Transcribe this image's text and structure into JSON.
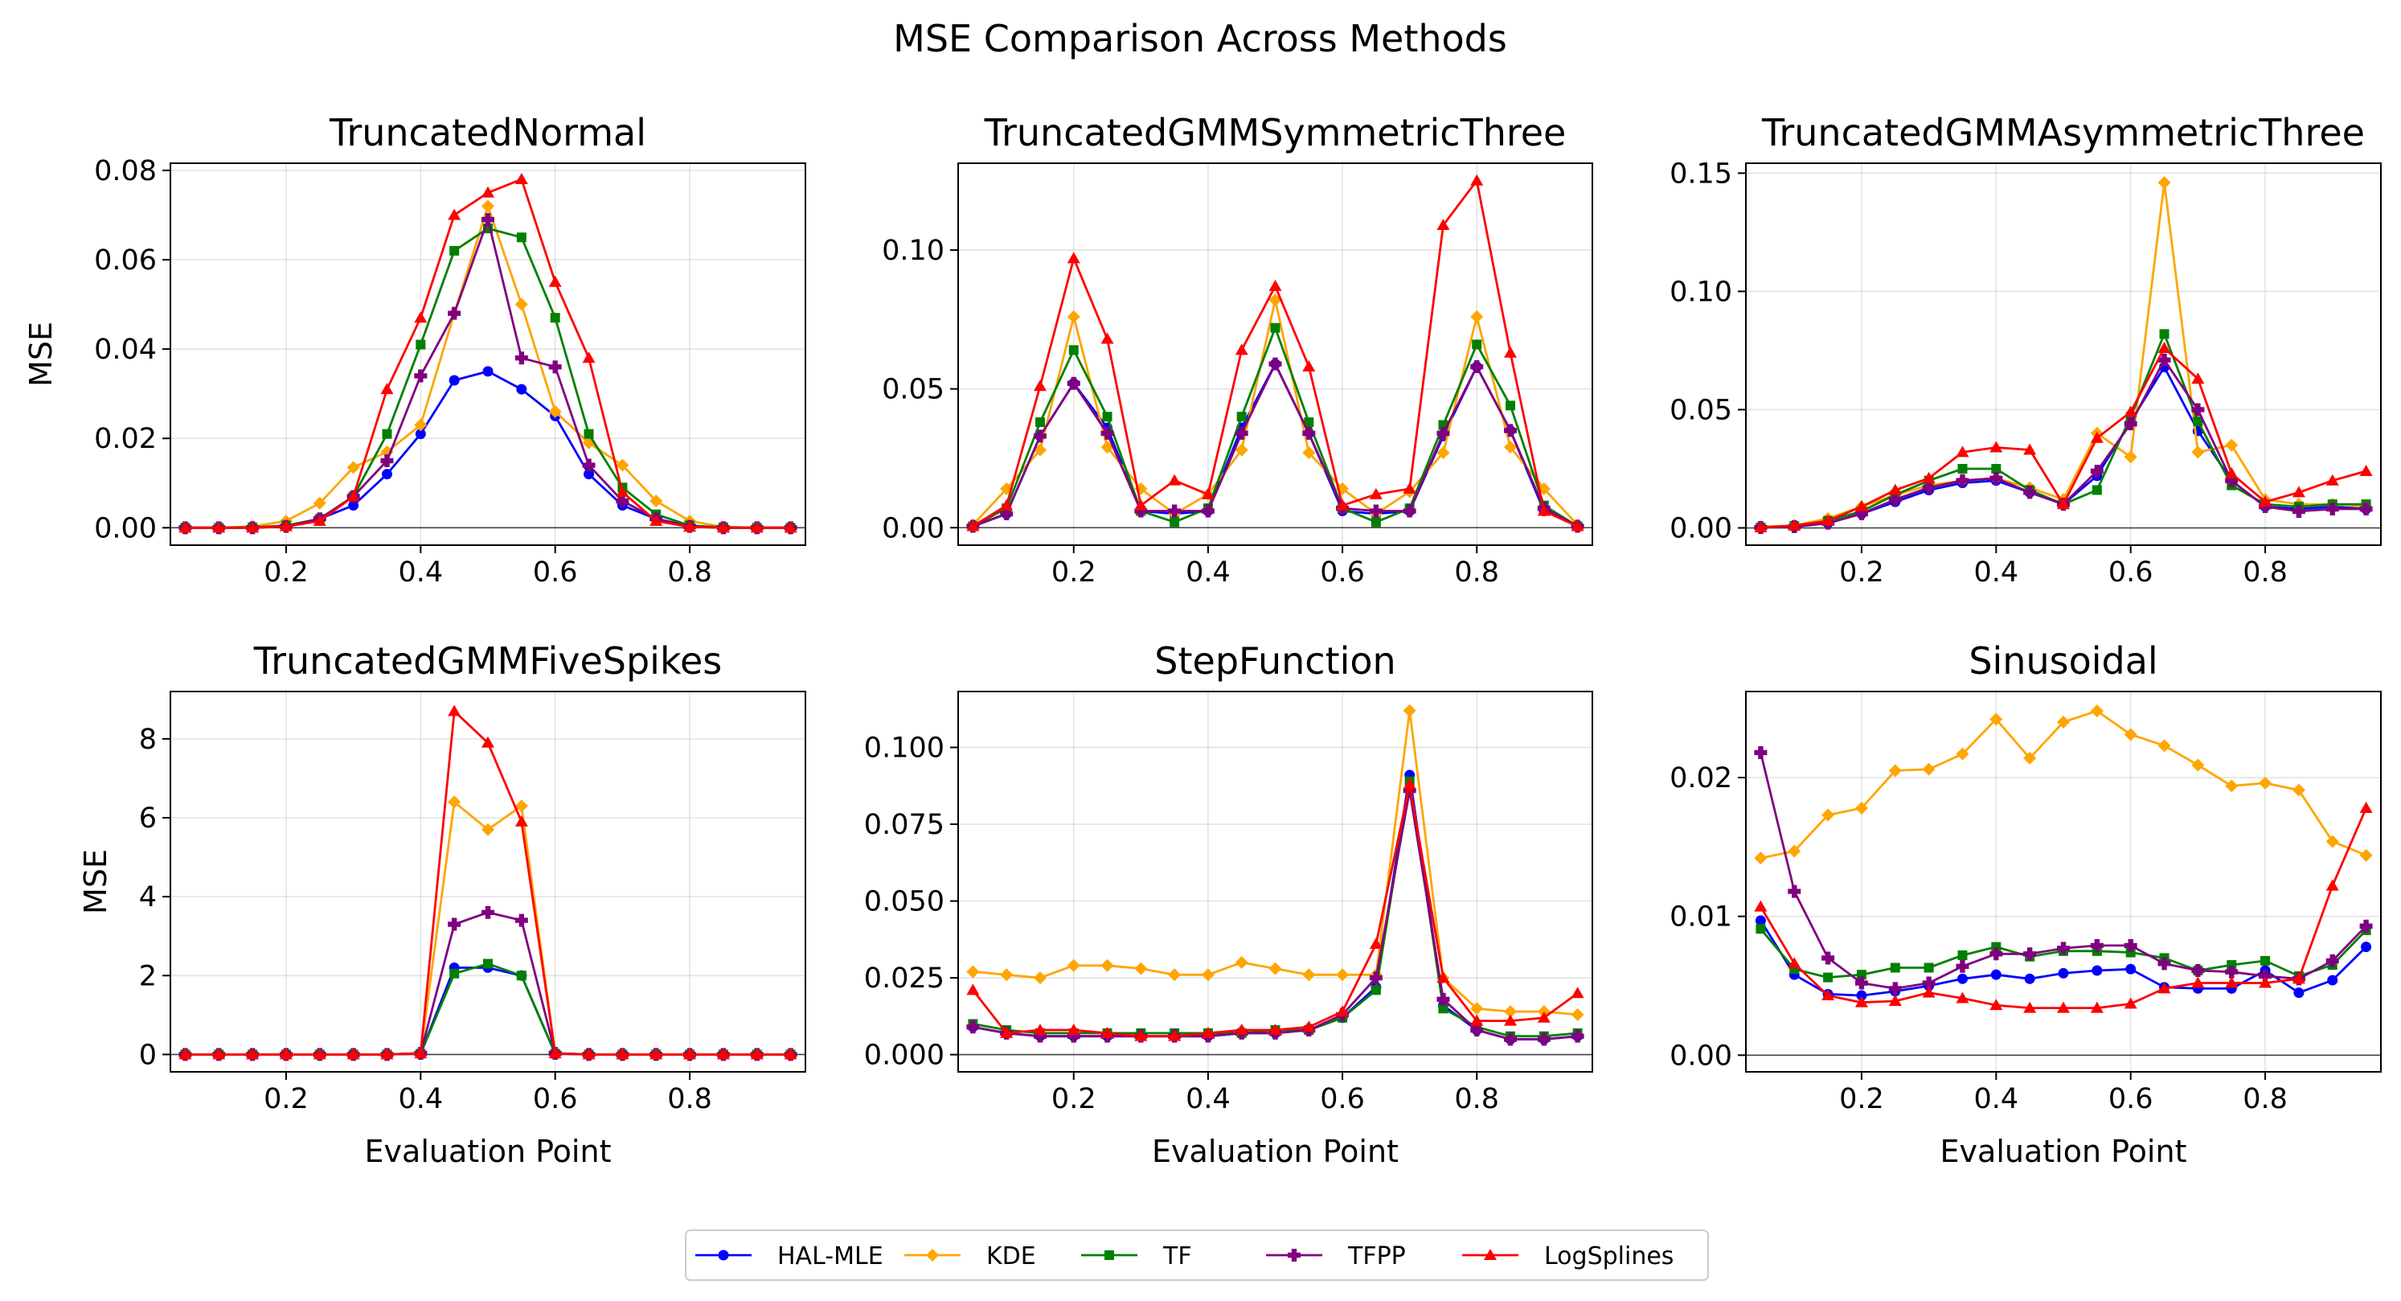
{
  "suptitle": "MSE Comparison Across Methods",
  "legend": [
    {
      "name": "HAL-MLE",
      "color": "#0000ff",
      "marker": "circle"
    },
    {
      "name": "KDE",
      "color": "#ffa500",
      "marker": "diamond"
    },
    {
      "name": "TF",
      "color": "#008000",
      "marker": "square"
    },
    {
      "name": "TFPP",
      "color": "#800080",
      "marker": "plus"
    },
    {
      "name": "LogSplines",
      "color": "#ff0000",
      "marker": "triangle"
    }
  ],
  "chart_data": [
    {
      "type": "line",
      "title": "TruncatedNormal",
      "xlabel": "",
      "ylabel": "MSE",
      "xlim": [
        0.028,
        0.972
      ],
      "ylim": [
        -0.0039,
        0.0816
      ],
      "xticks": [
        0.2,
        0.4,
        0.6,
        0.8
      ],
      "xtick_labels": [
        "0.2",
        "0.4",
        "0.6",
        "0.8"
      ],
      "yticks": [
        0,
        0.02,
        0.04,
        0.06,
        0.08
      ],
      "ytick_labels": [
        "0.00",
        "0.02",
        "0.04",
        "0.06",
        "0.08"
      ],
      "grid": true,
      "x": [
        0.05,
        0.1,
        0.15,
        0.2,
        0.25,
        0.3,
        0.35,
        0.4,
        0.45,
        0.5,
        0.55,
        0.6,
        0.65,
        0.7,
        0.75,
        0.8,
        0.85,
        0.9,
        0.95
      ],
      "series": [
        {
          "name": "HAL-MLE",
          "values": [
            0,
            0,
            0,
            0.0004,
            0.002,
            0.005,
            0.012,
            0.021,
            0.033,
            0.035,
            0.031,
            0.025,
            0.012,
            0.005,
            0.002,
            0.0004,
            0,
            0,
            0
          ]
        },
        {
          "name": "KDE",
          "values": [
            0,
            0,
            0.0003,
            0.0015,
            0.0055,
            0.0135,
            0.017,
            0.023,
            0.048,
            0.072,
            0.05,
            0.026,
            0.019,
            0.014,
            0.006,
            0.0015,
            0.0002,
            0,
            0
          ]
        },
        {
          "name": "TF",
          "values": [
            0,
            0,
            0.0001,
            0.0005,
            0.002,
            0.007,
            0.021,
            0.041,
            0.062,
            0.067,
            0.065,
            0.047,
            0.021,
            0.009,
            0.003,
            0.0005,
            0.0001,
            0,
            0
          ]
        },
        {
          "name": "TFPP",
          "values": [
            0,
            0,
            0,
            0.0003,
            0.002,
            0.007,
            0.015,
            0.034,
            0.048,
            0.069,
            0.038,
            0.036,
            0.014,
            0.006,
            0.002,
            0.0003,
            0,
            0,
            0
          ]
        },
        {
          "name": "LogSplines",
          "values": [
            0,
            0,
            0,
            0.0003,
            0.0015,
            0.007,
            0.031,
            0.047,
            0.07,
            0.075,
            0.078,
            0.055,
            0.038,
            0.008,
            0.0015,
            0.0002,
            0,
            0,
            0
          ]
        }
      ]
    },
    {
      "type": "line",
      "title": "TruncatedGMMSymmetricThree",
      "xlabel": "",
      "ylabel": "",
      "xlim": [
        0.028,
        0.972
      ],
      "ylim": [
        -0.0063,
        0.1313
      ],
      "xticks": [
        0.2,
        0.4,
        0.6,
        0.8
      ],
      "xtick_labels": [
        "0.2",
        "0.4",
        "0.6",
        "0.8"
      ],
      "yticks": [
        0,
        0.05,
        0.1
      ],
      "ytick_labels": [
        "0.00",
        "0.05",
        "0.10"
      ],
      "grid": true,
      "x": [
        0.05,
        0.1,
        0.15,
        0.2,
        0.25,
        0.3,
        0.35,
        0.4,
        0.45,
        0.5,
        0.55,
        0.6,
        0.65,
        0.7,
        0.75,
        0.8,
        0.85,
        0.9,
        0.95
      ],
      "series": [
        {
          "name": "HAL-MLE",
          "values": [
            0.0005,
            0.005,
            0.033,
            0.052,
            0.036,
            0.006,
            0.005,
            0.006,
            0.036,
            0.059,
            0.034,
            0.006,
            0.005,
            0.006,
            0.033,
            0.058,
            0.035,
            0.006,
            0.0005
          ]
        },
        {
          "name": "KDE",
          "values": [
            0.001,
            0.014,
            0.028,
            0.076,
            0.029,
            0.014,
            0.005,
            0.012,
            0.028,
            0.082,
            0.027,
            0.014,
            0.005,
            0.013,
            0.027,
            0.076,
            0.029,
            0.014,
            0.001
          ]
        },
        {
          "name": "TF",
          "values": [
            0.0005,
            0.007,
            0.038,
            0.064,
            0.04,
            0.006,
            0.002,
            0.007,
            0.04,
            0.072,
            0.038,
            0.007,
            0.002,
            0.007,
            0.037,
            0.066,
            0.044,
            0.008,
            0.0005
          ]
        },
        {
          "name": "TFPP",
          "values": [
            0.0005,
            0.005,
            0.033,
            0.052,
            0.034,
            0.006,
            0.006,
            0.006,
            0.034,
            0.059,
            0.034,
            0.007,
            0.006,
            0.006,
            0.034,
            0.058,
            0.035,
            0.007,
            0.0005
          ]
        },
        {
          "name": "LogSplines",
          "values": [
            0.0005,
            0.008,
            0.051,
            0.097,
            0.068,
            0.008,
            0.017,
            0.012,
            0.064,
            0.087,
            0.058,
            0.008,
            0.012,
            0.014,
            0.109,
            0.125,
            0.063,
            0.006,
            0.0005
          ]
        }
      ]
    },
    {
      "type": "line",
      "title": "TruncatedGMMAsymmetricThree",
      "xlabel": "",
      "ylabel": "",
      "xlim": [
        0.028,
        0.972
      ],
      "ylim": [
        -0.0073,
        0.1542
      ],
      "xticks": [
        0.2,
        0.4,
        0.6,
        0.8
      ],
      "xtick_labels": [
        "0.2",
        "0.4",
        "0.6",
        "0.8"
      ],
      "yticks": [
        0,
        0.05,
        0.1,
        0.15
      ],
      "ytick_labels": [
        "0.00",
        "0.05",
        "0.10",
        "0.15"
      ],
      "grid": true,
      "x": [
        0.05,
        0.1,
        0.15,
        0.2,
        0.25,
        0.3,
        0.35,
        0.4,
        0.45,
        0.5,
        0.55,
        0.6,
        0.65,
        0.7,
        0.75,
        0.8,
        0.85,
        0.9,
        0.95
      ],
      "series": [
        {
          "name": "HAL-MLE",
          "values": [
            0.0002,
            0.0005,
            0.002,
            0.006,
            0.011,
            0.016,
            0.019,
            0.02,
            0.015,
            0.01,
            0.022,
            0.045,
            0.068,
            0.041,
            0.02,
            0.009,
            0.008,
            0.009,
            0.008
          ]
        },
        {
          "name": "KDE",
          "values": [
            0.0005,
            0.001,
            0.004,
            0.009,
            0.014,
            0.018,
            0.02,
            0.021,
            0.017,
            0.012,
            0.04,
            0.03,
            0.146,
            0.032,
            0.035,
            0.012,
            0.01,
            0.01,
            0.009
          ]
        },
        {
          "name": "TF",
          "values": [
            0.0002,
            0.0008,
            0.003,
            0.007,
            0.014,
            0.02,
            0.025,
            0.025,
            0.016,
            0.01,
            0.016,
            0.047,
            0.082,
            0.045,
            0.018,
            0.01,
            0.009,
            0.01,
            0.01
          ]
        },
        {
          "name": "TFPP",
          "values": [
            0.0002,
            0.0005,
            0.002,
            0.006,
            0.012,
            0.017,
            0.02,
            0.021,
            0.015,
            0.01,
            0.024,
            0.044,
            0.071,
            0.05,
            0.02,
            0.009,
            0.007,
            0.008,
            0.008
          ]
        },
        {
          "name": "LogSplines",
          "values": [
            0.0002,
            0.001,
            0.003,
            0.009,
            0.016,
            0.021,
            0.032,
            0.034,
            0.033,
            0.01,
            0.038,
            0.049,
            0.076,
            0.063,
            0.023,
            0.011,
            0.015,
            0.02,
            0.024
          ]
        }
      ]
    },
    {
      "type": "line",
      "title": "TruncatedGMMFiveSpikes",
      "xlabel": "Evaluation Point",
      "ylabel": "MSE",
      "xlim": [
        0.028,
        0.972
      ],
      "ylim": [
        -0.44,
        9.2
      ],
      "xticks": [
        0.2,
        0.4,
        0.6,
        0.8
      ],
      "xtick_labels": [
        "0.2",
        "0.4",
        "0.6",
        "0.8"
      ],
      "yticks": [
        0,
        2,
        4,
        6,
        8
      ],
      "ytick_labels": [
        "0",
        "2",
        "4",
        "6",
        "8"
      ],
      "grid": true,
      "x": [
        0.05,
        0.1,
        0.15,
        0.2,
        0.25,
        0.3,
        0.35,
        0.4,
        0.45,
        0.5,
        0.55,
        0.6,
        0.65,
        0.7,
        0.75,
        0.8,
        0.85,
        0.9,
        0.95
      ],
      "series": [
        {
          "name": "HAL-MLE",
          "values": [
            0,
            0,
            0,
            0,
            0,
            0,
            0,
            0.02,
            2.2,
            2.2,
            2.0,
            0.02,
            0,
            0,
            0,
            0,
            0,
            0,
            0
          ]
        },
        {
          "name": "KDE",
          "values": [
            0,
            0,
            0,
            0,
            0,
            0,
            0,
            0.03,
            6.4,
            5.7,
            6.3,
            0.03,
            0,
            0,
            0,
            0,
            0,
            0,
            0
          ]
        },
        {
          "name": "TF",
          "values": [
            0,
            0,
            0,
            0,
            0,
            0,
            0,
            0.02,
            2.05,
            2.3,
            2.0,
            0.02,
            0,
            0,
            0,
            0,
            0,
            0,
            0
          ]
        },
        {
          "name": "TFPP",
          "values": [
            0,
            0,
            0,
            0,
            0,
            0,
            0,
            0.03,
            3.3,
            3.6,
            3.4,
            0.03,
            0,
            0,
            0,
            0,
            0,
            0,
            0
          ]
        },
        {
          "name": "LogSplines",
          "values": [
            0,
            0,
            0,
            0,
            0,
            0,
            0,
            0.03,
            8.7,
            7.9,
            5.9,
            0.03,
            0,
            0,
            0,
            0,
            0,
            0,
            0
          ]
        }
      ]
    },
    {
      "type": "line",
      "title": "StepFunction",
      "xlabel": "Evaluation Point",
      "ylabel": "",
      "xlim": [
        0.028,
        0.972
      ],
      "ylim": [
        -0.0056,
        0.1182
      ],
      "xticks": [
        0.2,
        0.4,
        0.6,
        0.8
      ],
      "xtick_labels": [
        "0.2",
        "0.4",
        "0.6",
        "0.8"
      ],
      "yticks": [
        0,
        0.025,
        0.05,
        0.075,
        0.1
      ],
      "ytick_labels": [
        "0.000",
        "0.025",
        "0.050",
        "0.075",
        "0.100"
      ],
      "grid": true,
      "x": [
        0.05,
        0.1,
        0.15,
        0.2,
        0.25,
        0.3,
        0.35,
        0.4,
        0.45,
        0.5,
        0.55,
        0.6,
        0.65,
        0.7,
        0.75,
        0.8,
        0.85,
        0.9,
        0.95
      ],
      "series": [
        {
          "name": "HAL-MLE",
          "values": [
            0.009,
            0.007,
            0.006,
            0.006,
            0.006,
            0.006,
            0.006,
            0.006,
            0.007,
            0.007,
            0.008,
            0.012,
            0.022,
            0.091,
            0.016,
            0.008,
            0.005,
            0.005,
            0.006
          ]
        },
        {
          "name": "KDE",
          "values": [
            0.027,
            0.026,
            0.025,
            0.029,
            0.029,
            0.028,
            0.026,
            0.026,
            0.03,
            0.028,
            0.026,
            0.026,
            0.026,
            0.112,
            0.025,
            0.015,
            0.014,
            0.014,
            0.013
          ]
        },
        {
          "name": "TF",
          "values": [
            0.01,
            0.008,
            0.007,
            0.007,
            0.007,
            0.007,
            0.007,
            0.007,
            0.007,
            0.008,
            0.008,
            0.012,
            0.021,
            0.089,
            0.015,
            0.009,
            0.006,
            0.006,
            0.007
          ]
        },
        {
          "name": "TFPP",
          "values": [
            0.009,
            0.007,
            0.006,
            0.006,
            0.006,
            0.006,
            0.006,
            0.006,
            0.007,
            0.007,
            0.008,
            0.013,
            0.025,
            0.086,
            0.018,
            0.008,
            0.005,
            0.005,
            0.006
          ]
        },
        {
          "name": "LogSplines",
          "values": [
            0.021,
            0.007,
            0.008,
            0.008,
            0.007,
            0.006,
            0.006,
            0.007,
            0.008,
            0.008,
            0.009,
            0.014,
            0.036,
            0.088,
            0.025,
            0.011,
            0.011,
            0.012,
            0.02
          ]
        }
      ]
    },
    {
      "type": "line",
      "title": "Sinusoidal",
      "xlabel": "Evaluation Point",
      "ylabel": "",
      "xlim": [
        0.028,
        0.972
      ],
      "ylim": [
        -0.0012,
        0.0262
      ],
      "xticks": [
        0.2,
        0.4,
        0.6,
        0.8
      ],
      "xtick_labels": [
        "0.2",
        "0.4",
        "0.6",
        "0.8"
      ],
      "yticks": [
        0,
        0.01,
        0.02
      ],
      "ytick_labels": [
        "0.00",
        "0.01",
        "0.02"
      ],
      "grid": true,
      "x": [
        0.05,
        0.1,
        0.15,
        0.2,
        0.25,
        0.3,
        0.35,
        0.4,
        0.45,
        0.5,
        0.55,
        0.6,
        0.65,
        0.7,
        0.75,
        0.8,
        0.85,
        0.9,
        0.95
      ],
      "series": [
        {
          "name": "HAL-MLE",
          "values": [
            0.0097,
            0.0058,
            0.0044,
            0.0043,
            0.0046,
            0.005,
            0.0055,
            0.0058,
            0.0055,
            0.0059,
            0.0061,
            0.0062,
            0.0049,
            0.0048,
            0.0048,
            0.0061,
            0.0045,
            0.0054,
            0.0078
          ]
        },
        {
          "name": "KDE",
          "values": [
            0.0142,
            0.0147,
            0.0173,
            0.0178,
            0.0205,
            0.0206,
            0.0217,
            0.0242,
            0.0214,
            0.024,
            0.0248,
            0.0231,
            0.0223,
            0.0209,
            0.0194,
            0.0196,
            0.0191,
            0.0154,
            0.0144
          ]
        },
        {
          "name": "TF",
          "values": [
            0.0091,
            0.0062,
            0.0056,
            0.0058,
            0.0063,
            0.0063,
            0.0072,
            0.0078,
            0.0071,
            0.0075,
            0.0075,
            0.0074,
            0.007,
            0.0061,
            0.0065,
            0.0068,
            0.0057,
            0.0065,
            0.009
          ]
        },
        {
          "name": "TFPP",
          "values": [
            0.0218,
            0.0118,
            0.007,
            0.0052,
            0.0048,
            0.0052,
            0.0064,
            0.0073,
            0.0073,
            0.0077,
            0.0079,
            0.0079,
            0.0066,
            0.0061,
            0.006,
            0.0057,
            0.0055,
            0.0068,
            0.0093
          ]
        },
        {
          "name": "LogSplines",
          "values": [
            0.0107,
            0.0066,
            0.0043,
            0.0038,
            0.0039,
            0.0045,
            0.0041,
            0.0036,
            0.0034,
            0.0034,
            0.0034,
            0.0037,
            0.0048,
            0.0052,
            0.0052,
            0.0052,
            0.0055,
            0.0122,
            0.0178
          ]
        }
      ]
    }
  ]
}
